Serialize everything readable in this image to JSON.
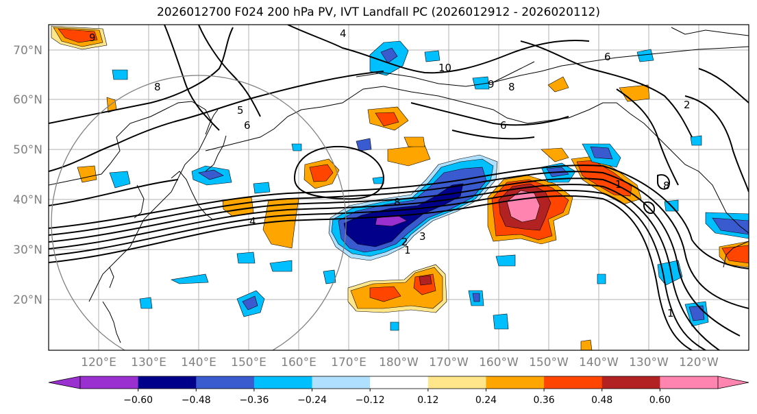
{
  "title": "2026012700 F024 200 hPa PV, IVT Landfall PC (2026012912 - 2026020112)",
  "lat_labels": [
    "70°N",
    "60°N",
    "50°N",
    "40°N",
    "30°N",
    "20°N"
  ],
  "lon_labels": [
    "120°E",
    "130°E",
    "140°E",
    "150°E",
    "160°E",
    "170°E",
    "180°W",
    "170°W",
    "160°W",
    "150°W",
    "140°W",
    "130°W",
    "120°W"
  ],
  "colorbar": {
    "ticks": [
      "−0.60",
      "−0.48",
      "−0.36",
      "−0.24",
      "−0.12",
      "0.12",
      "0.24",
      "0.36",
      "0.48",
      "0.60"
    ],
    "colors": [
      "#9b30d0",
      "#00008b",
      "#3a5bd0",
      "#00bfff",
      "#b0e0ff",
      "#ffffff",
      "#ffe68a",
      "#ffa500",
      "#ff4500",
      "#b22222",
      "#ff85b0"
    ]
  },
  "contour_labels": [
    "4",
    "8",
    "1",
    "2",
    "3",
    "4",
    "8",
    "6",
    "5",
    "6",
    "8",
    "9",
    "10",
    "6",
    "2",
    "1",
    "1",
    "8",
    "9"
  ]
}
